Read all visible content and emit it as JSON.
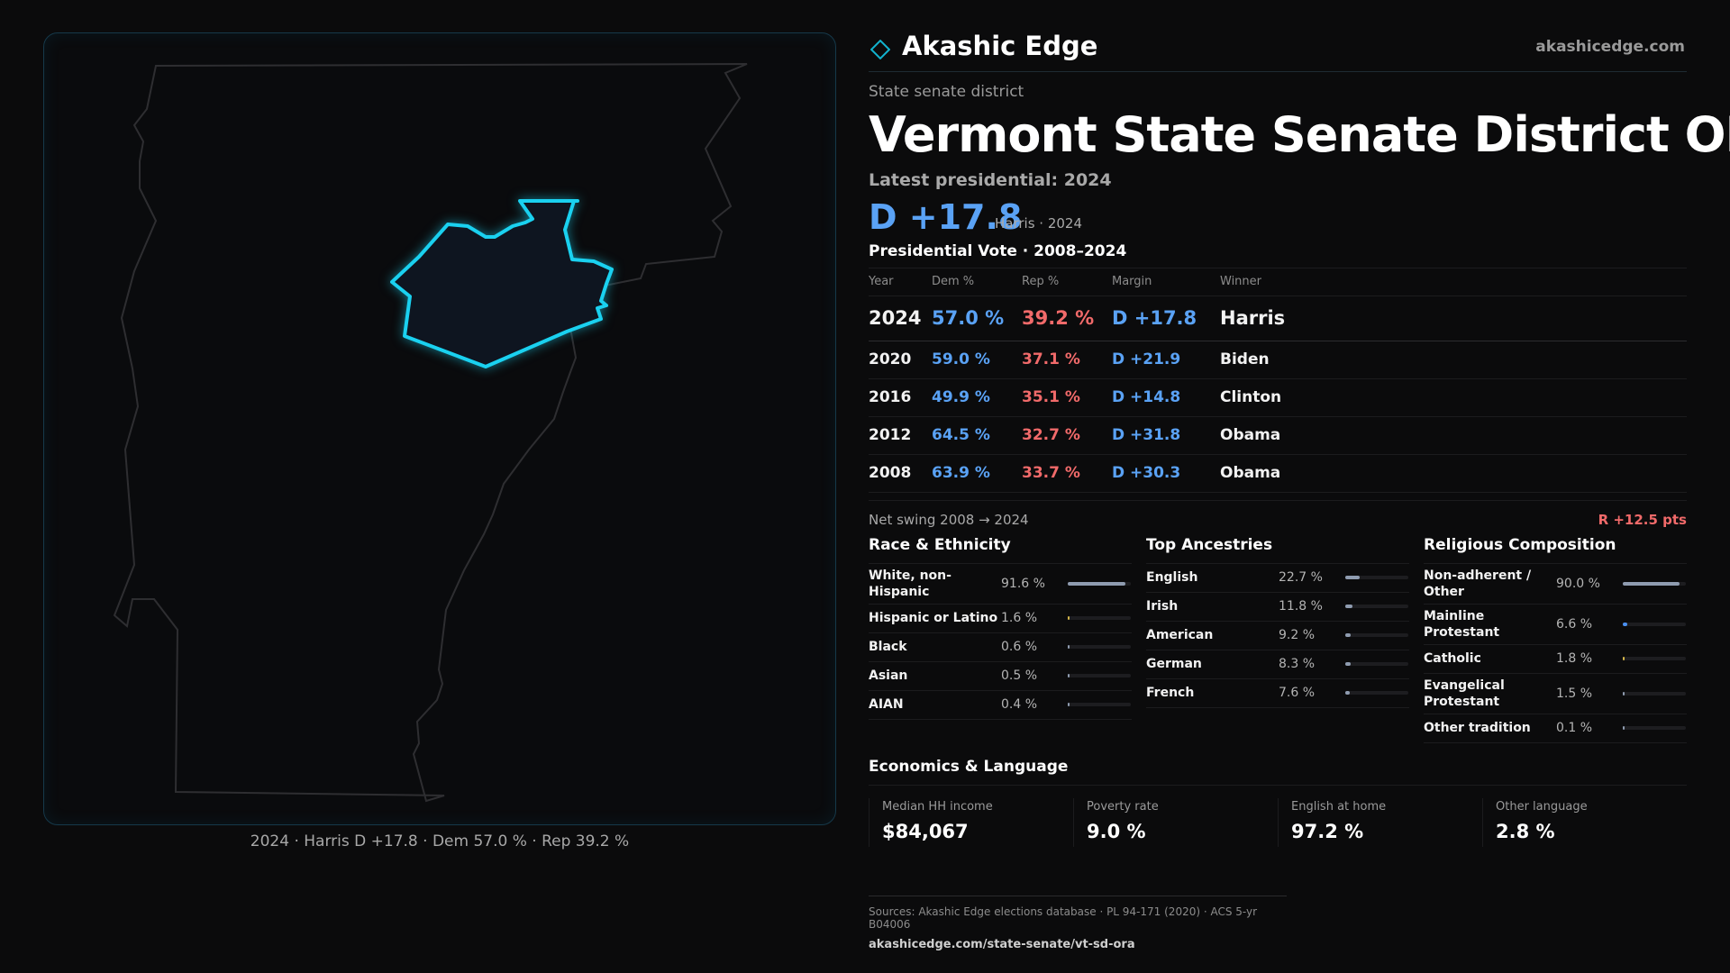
{
  "brand": {
    "name": "Akashic Edge",
    "url": "akashicedge.com"
  },
  "kicker": "State senate district",
  "title": "Vermont State Senate District ORA",
  "latest": {
    "label": "Latest presidential: 2024",
    "margin": "D +17.8",
    "sub": "Harris · 2024"
  },
  "presidential": {
    "title": "Presidential Vote · 2008–2024",
    "headers": {
      "year": "Year",
      "dem": "Dem %",
      "rep": "Rep %",
      "margin": "Margin",
      "winner": "Winner"
    },
    "rows": [
      {
        "year": "2024",
        "dem": "57.0 %",
        "rep": "39.2 %",
        "margin": "D +17.8",
        "winner": "Harris"
      },
      {
        "year": "2020",
        "dem": "59.0 %",
        "rep": "37.1 %",
        "margin": "D +21.9",
        "winner": "Biden"
      },
      {
        "year": "2016",
        "dem": "49.9 %",
        "rep": "35.1 %",
        "margin": "D +14.8",
        "winner": "Clinton"
      },
      {
        "year": "2012",
        "dem": "64.5 %",
        "rep": "32.7 %",
        "margin": "D +31.8",
        "winner": "Obama"
      },
      {
        "year": "2008",
        "dem": "63.9 %",
        "rep": "33.7 %",
        "margin": "D +30.3",
        "winner": "Obama"
      }
    ]
  },
  "swing": {
    "label": "Net swing 2008 → 2024",
    "value": "R +12.5 pts"
  },
  "race": {
    "title": "Race & Ethnicity",
    "items": [
      {
        "label": "White, non-Hispanic",
        "pct": "91.6 %",
        "value": 91.6,
        "color": "#8f9cb0"
      },
      {
        "label": "Hispanic or Latino",
        "pct": "1.6 %",
        "value": 1.6,
        "color": "#d4b64a"
      },
      {
        "label": "Black",
        "pct": "0.6 %",
        "value": 0.6,
        "color": "#8f9cb0"
      },
      {
        "label": "Asian",
        "pct": "0.5 %",
        "value": 0.5,
        "color": "#8f9cb0"
      },
      {
        "label": "AIAN",
        "pct": "0.4 %",
        "value": 0.4,
        "color": "#8f9cb0"
      }
    ]
  },
  "ancestry": {
    "title": "Top Ancestries",
    "items": [
      {
        "label": "English",
        "pct": "22.7 %",
        "value": 22.7,
        "color": "#8f9cb0"
      },
      {
        "label": "Irish",
        "pct": "11.8 %",
        "value": 11.8,
        "color": "#8f9cb0"
      },
      {
        "label": "American",
        "pct": "9.2 %",
        "value": 9.2,
        "color": "#8f9cb0"
      },
      {
        "label": "German",
        "pct": "8.3 %",
        "value": 8.3,
        "color": "#8f9cb0"
      },
      {
        "label": "French",
        "pct": "7.6 %",
        "value": 7.6,
        "color": "#8f9cb0"
      }
    ]
  },
  "religion": {
    "title": "Religious Composition",
    "items": [
      {
        "label": "Non-adherent / Other",
        "pct": "90.0 %",
        "value": 90.0,
        "color": "#8f9cb0"
      },
      {
        "label": "Mainline Protestant",
        "pct": "6.6 %",
        "value": 6.6,
        "color": "#4a8ff0"
      },
      {
        "label": "Catholic",
        "pct": "1.8 %",
        "value": 1.8,
        "color": "#d4b64a"
      },
      {
        "label": "Evangelical Protestant",
        "pct": "1.5 %",
        "value": 1.5,
        "color": "#8f9cb0"
      },
      {
        "label": "Other tradition",
        "pct": "0.1 %",
        "value": 0.1,
        "color": "#8f9cb0"
      }
    ]
  },
  "economics": {
    "title": "Economics & Language",
    "items": [
      {
        "label": "Median HH income",
        "value": "$84,067"
      },
      {
        "label": "Poverty rate",
        "value": "9.0 %"
      },
      {
        "label": "English at home",
        "value": "97.2 %"
      },
      {
        "label": "Other language",
        "value": "2.8 %"
      }
    ]
  },
  "map_caption": "2024 · Harris D +17.8 · Dem 57.0 % · Rep 39.2 %",
  "footer": {
    "sources": "Sources: Akashic Edge elections database · PL 94-171 (2020) · ACS 5-yr B04006",
    "url": "akashicedge.com/state-senate/vt-sd-ora"
  },
  "colors": {
    "dem": "#5aa2f5",
    "rep": "#f16a6a",
    "district_outline": "#1ad1f0"
  }
}
